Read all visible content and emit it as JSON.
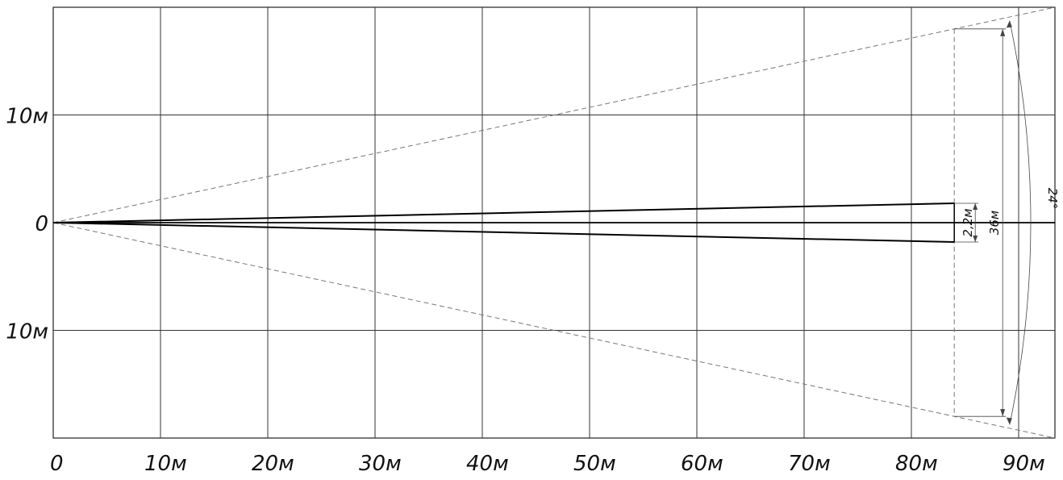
{
  "diagram": {
    "x_axis": {
      "unit": "м",
      "tick_labels": [
        "0",
        "10м",
        "20м",
        "30м",
        "40м",
        "50м",
        "60м",
        "70м",
        "80м",
        "90м"
      ],
      "tick_values": [
        0,
        10,
        20,
        30,
        40,
        50,
        60,
        70,
        80,
        90
      ],
      "max": 93
    },
    "y_axis": {
      "tick_labels": [
        "10м",
        "0",
        "10м"
      ],
      "tick_values": [
        10,
        0,
        -10
      ],
      "range": [
        -20,
        20
      ]
    },
    "grid": true,
    "field_of_view": {
      "angle_label": "24°",
      "width_label": "36м",
      "width_m": 36,
      "at_distance_m": 84
    },
    "beam": {
      "width_label": "2,2м",
      "half_width_at_end_m": 1.8,
      "end_distance_m": 84
    }
  }
}
